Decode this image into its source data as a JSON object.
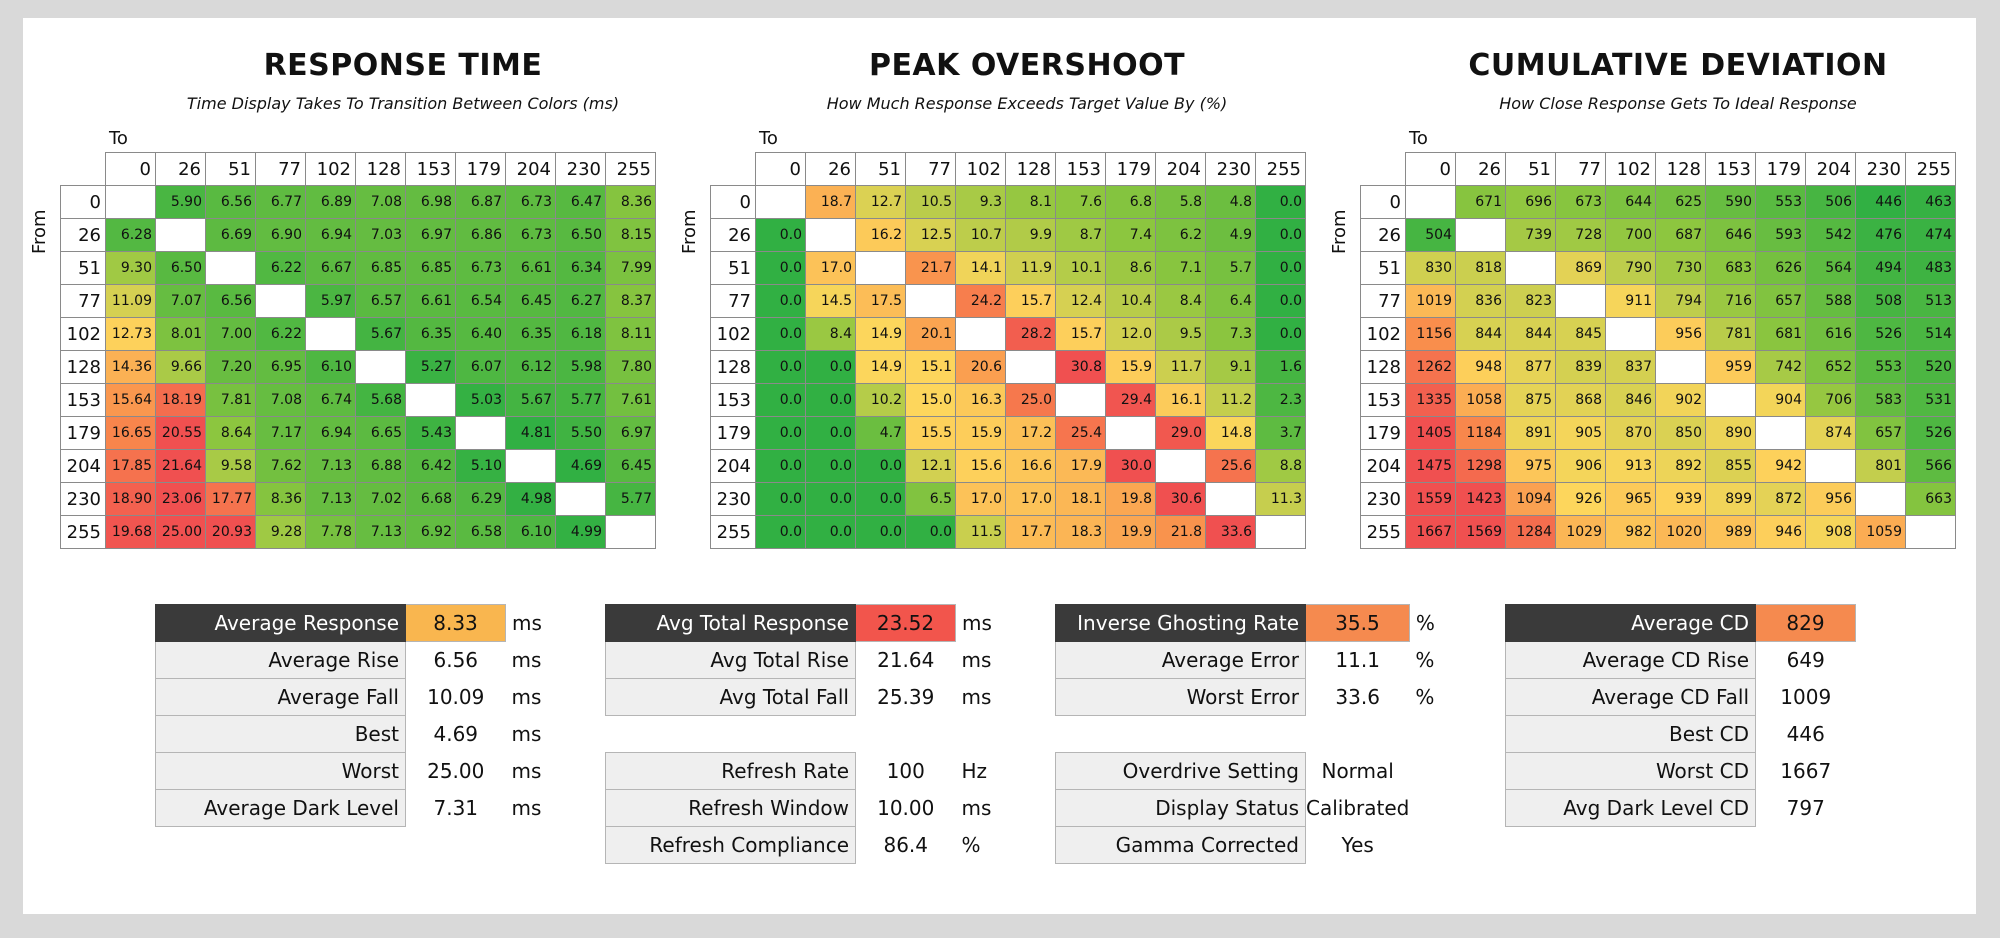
{
  "chart_data": [
    {
      "type": "heatmap",
      "title": "RESPONSE TIME",
      "subtitle": "Time Display Takes To Transition Between Colors (ms)",
      "xlabel": "To",
      "ylabel": "From",
      "levels": [
        "0",
        "26",
        "51",
        "77",
        "102",
        "128",
        "153",
        "179",
        "204",
        "230",
        "255"
      ],
      "colormap": "low-green-high-red",
      "values": [
        [
          null,
          "5.90",
          "6.56",
          "6.77",
          "6.89",
          "7.08",
          "6.98",
          "6.87",
          "6.73",
          "6.47",
          "8.36"
        ],
        [
          "6.28",
          null,
          "6.69",
          "6.90",
          "6.94",
          "7.03",
          "6.97",
          "6.86",
          "6.73",
          "6.50",
          "8.15"
        ],
        [
          "9.30",
          "6.50",
          null,
          "6.22",
          "6.67",
          "6.85",
          "6.85",
          "6.73",
          "6.61",
          "6.34",
          "7.99"
        ],
        [
          "11.09",
          "7.07",
          "6.56",
          null,
          "5.97",
          "6.57",
          "6.61",
          "6.54",
          "6.45",
          "6.27",
          "8.37"
        ],
        [
          "12.73",
          "8.01",
          "7.00",
          "6.22",
          null,
          "5.67",
          "6.35",
          "6.40",
          "6.35",
          "6.18",
          "8.11"
        ],
        [
          "14.36",
          "9.66",
          "7.20",
          "6.95",
          "6.10",
          null,
          "5.27",
          "6.07",
          "6.12",
          "5.98",
          "7.80"
        ],
        [
          "15.64",
          "18.19",
          "7.81",
          "7.08",
          "6.74",
          "5.68",
          null,
          "5.03",
          "5.67",
          "5.77",
          "7.61"
        ],
        [
          "16.65",
          "20.55",
          "8.64",
          "7.17",
          "6.94",
          "6.65",
          "5.43",
          null,
          "4.81",
          "5.50",
          "6.97"
        ],
        [
          "17.85",
          "21.64",
          "9.58",
          "7.62",
          "7.13",
          "6.88",
          "6.42",
          "5.10",
          null,
          "4.69",
          "6.45"
        ],
        [
          "18.90",
          "23.06",
          "17.77",
          "8.36",
          "7.13",
          "7.02",
          "6.68",
          "6.29",
          "4.98",
          null,
          "5.77"
        ],
        [
          "19.68",
          "25.00",
          "20.93",
          "9.28",
          "7.78",
          "7.13",
          "6.92",
          "6.58",
          "6.10",
          "4.99",
          null
        ]
      ],
      "stats": [
        {
          "label": "Average Response",
          "value": "8.33",
          "unit": "ms",
          "highlight": "#f9b64f"
        },
        {
          "label": "Average Rise",
          "value": "6.56",
          "unit": "ms"
        },
        {
          "label": "Average Fall",
          "value": "10.09",
          "unit": "ms"
        },
        {
          "label": "Best",
          "value": "4.69",
          "unit": "ms"
        },
        {
          "label": "Worst",
          "value": "25.00",
          "unit": "ms"
        },
        {
          "label": "Average Dark Level",
          "value": "7.31",
          "unit": "ms"
        }
      ]
    },
    {
      "type": "heatmap",
      "title": "PEAK OVERSHOOT",
      "subtitle": "How Much Response Exceeds Target Value By (%)",
      "xlabel": "To",
      "ylabel": "From",
      "levels": [
        "0",
        "26",
        "51",
        "77",
        "102",
        "128",
        "153",
        "179",
        "204",
        "230",
        "255"
      ],
      "colormap": "low-green-high-red",
      "values": [
        [
          null,
          "18.7",
          "12.7",
          "10.5",
          "9.3",
          "8.1",
          "7.6",
          "6.8",
          "5.8",
          "4.8",
          "0.0"
        ],
        [
          "0.0",
          null,
          "16.2",
          "12.5",
          "10.7",
          "9.9",
          "8.7",
          "7.4",
          "6.2",
          "4.9",
          "0.0"
        ],
        [
          "0.0",
          "17.0",
          null,
          "21.7",
          "14.1",
          "11.9",
          "10.1",
          "8.6",
          "7.1",
          "5.7",
          "0.0"
        ],
        [
          "0.0",
          "14.5",
          "17.5",
          null,
          "24.2",
          "15.7",
          "12.4",
          "10.4",
          "8.4",
          "6.4",
          "0.0"
        ],
        [
          "0.0",
          "8.4",
          "14.9",
          "20.1",
          null,
          "28.2",
          "15.7",
          "12.0",
          "9.5",
          "7.3",
          "0.0"
        ],
        [
          "0.0",
          "0.0",
          "14.9",
          "15.1",
          "20.6",
          null,
          "30.8",
          "15.9",
          "11.7",
          "9.1",
          "1.6"
        ],
        [
          "0.0",
          "0.0",
          "10.2",
          "15.0",
          "16.3",
          "25.0",
          null,
          "29.4",
          "16.1",
          "11.2",
          "2.3"
        ],
        [
          "0.0",
          "0.0",
          "4.7",
          "15.5",
          "15.9",
          "17.2",
          "25.4",
          null,
          "29.0",
          "14.8",
          "3.7"
        ],
        [
          "0.0",
          "0.0",
          "0.0",
          "12.1",
          "15.6",
          "16.6",
          "17.9",
          "30.0",
          null,
          "25.6",
          "8.8"
        ],
        [
          "0.0",
          "0.0",
          "0.0",
          "6.5",
          "17.0",
          "17.0",
          "18.1",
          "19.8",
          "30.6",
          null,
          "11.3"
        ],
        [
          "0.0",
          "0.0",
          "0.0",
          "0.0",
          "11.5",
          "17.7",
          "18.3",
          "19.9",
          "21.8",
          "33.6",
          null
        ]
      ],
      "stats": [
        {
          "label": "Avg Total Response",
          "value": "23.52",
          "unit": "ms",
          "highlight": "#f2554c"
        },
        {
          "label": "Avg Total Rise",
          "value": "21.64",
          "unit": "ms"
        },
        {
          "label": "Avg Total Fall",
          "value": "25.39",
          "unit": "ms"
        },
        {
          "blank": true
        },
        {
          "label": "Refresh Rate",
          "value": "100",
          "unit": "Hz"
        },
        {
          "label": "Refresh Window",
          "value": "10.00",
          "unit": "ms"
        },
        {
          "label": "Refresh Compliance",
          "value": "86.4",
          "unit": "%"
        }
      ],
      "stats2": [
        {
          "label": "Inverse Ghosting Rate",
          "value": "35.5",
          "unit": "%",
          "highlight": "#f58a4f"
        },
        {
          "label": "Average Error",
          "value": "11.1",
          "unit": "%"
        },
        {
          "label": "Worst Error",
          "value": "33.6",
          "unit": "%"
        },
        {
          "blank": true
        },
        {
          "label": "Overdrive Setting",
          "value": "Normal",
          "unit": ""
        },
        {
          "label": "Display Status",
          "value": "Calibrated",
          "unit": ""
        },
        {
          "label": "Gamma Corrected",
          "value": "Yes",
          "unit": ""
        }
      ]
    },
    {
      "type": "heatmap",
      "title": "CUMULATIVE DEVIATION",
      "subtitle": "How Close Response Gets To Ideal Response",
      "xlabel": "To",
      "ylabel": "From",
      "levels": [
        "0",
        "26",
        "51",
        "77",
        "102",
        "128",
        "153",
        "179",
        "204",
        "230",
        "255"
      ],
      "colormap": "low-green-high-red",
      "values": [
        [
          null,
          "671",
          "696",
          "673",
          "644",
          "625",
          "590",
          "553",
          "506",
          "446",
          "463"
        ],
        [
          "504",
          null,
          "739",
          "728",
          "700",
          "687",
          "646",
          "593",
          "542",
          "476",
          "474"
        ],
        [
          "830",
          "818",
          null,
          "869",
          "790",
          "730",
          "683",
          "626",
          "564",
          "494",
          "483"
        ],
        [
          "1019",
          "836",
          "823",
          null,
          "911",
          "794",
          "716",
          "657",
          "588",
          "508",
          "513"
        ],
        [
          "1156",
          "844",
          "844",
          "845",
          null,
          "956",
          "781",
          "681",
          "616",
          "526",
          "514"
        ],
        [
          "1262",
          "948",
          "877",
          "839",
          "837",
          null,
          "959",
          "742",
          "652",
          "553",
          "520"
        ],
        [
          "1335",
          "1058",
          "875",
          "868",
          "846",
          "902",
          null,
          "904",
          "706",
          "583",
          "531"
        ],
        [
          "1405",
          "1184",
          "891",
          "905",
          "870",
          "850",
          "890",
          null,
          "874",
          "657",
          "526"
        ],
        [
          "1475",
          "1298",
          "975",
          "906",
          "913",
          "892",
          "855",
          "942",
          null,
          "801",
          "566"
        ],
        [
          "1559",
          "1423",
          "1094",
          "926",
          "965",
          "939",
          "899",
          "872",
          "956",
          null,
          "663"
        ],
        [
          "1667",
          "1569",
          "1284",
          "1029",
          "982",
          "1020",
          "989",
          "946",
          "908",
          "1059",
          null
        ]
      ],
      "stats": [
        {
          "label": "Average CD",
          "value": "829",
          "unit": "",
          "highlight": "#f58a4f"
        },
        {
          "label": "Average CD Rise",
          "value": "649",
          "unit": ""
        },
        {
          "label": "Average CD Fall",
          "value": "1009",
          "unit": ""
        },
        {
          "label": "Best CD",
          "value": "446",
          "unit": ""
        },
        {
          "label": "Worst CD",
          "value": "1667",
          "unit": ""
        },
        {
          "label": "Avg Dark Level CD",
          "value": "797",
          "unit": ""
        }
      ]
    }
  ]
}
